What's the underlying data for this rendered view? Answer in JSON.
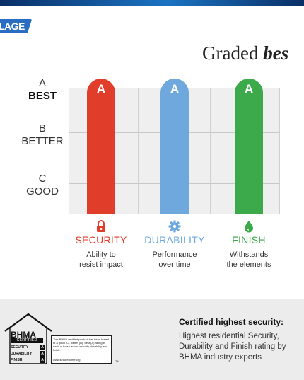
{
  "brand": {
    "logo_text": "LAGE"
  },
  "headline": {
    "normal": "Graded ",
    "bold": "bes"
  },
  "grades": [
    {
      "letter": "A",
      "label": "BEST"
    },
    {
      "letter": "B",
      "label": "BETTER"
    },
    {
      "letter": "C",
      "label": "GOOD"
    }
  ],
  "categories": [
    {
      "bar_letter": "A",
      "title": "SECURITY",
      "desc_line1": "Ability to",
      "desc_line2": "resist impact",
      "color": "#e03d2b",
      "icon": "lock-icon"
    },
    {
      "bar_letter": "A",
      "title": "DURABILITY",
      "desc_line1": "Performance",
      "desc_line2": "over time",
      "color": "#6fa8dc",
      "icon": "gear-icon"
    },
    {
      "bar_letter": "A",
      "title": "FINISH",
      "desc_line1": "Withstands",
      "desc_line2": "the elements",
      "color": "#3caa4a",
      "icon": "drop-icon"
    }
  ],
  "certification": {
    "title": "Certified highest security:",
    "body": "Highest residential Security, Durability and Finish rating by BHMA industry experts"
  },
  "bhma_badge": {
    "name": "BHMA",
    "sub": "CERTIFIED",
    "rows": [
      {
        "label": "SECURITY",
        "grade": "A"
      },
      {
        "label": "DURABILITY",
        "grade": "A"
      },
      {
        "label": "FINISH",
        "grade": "A"
      }
    ],
    "note": "This BHMA certified product has been tested to a good (C), better (B), best (A) rating in each of these areas: security, durability and finish.",
    "url": "www.securehome.org",
    "tm": "TM"
  }
}
